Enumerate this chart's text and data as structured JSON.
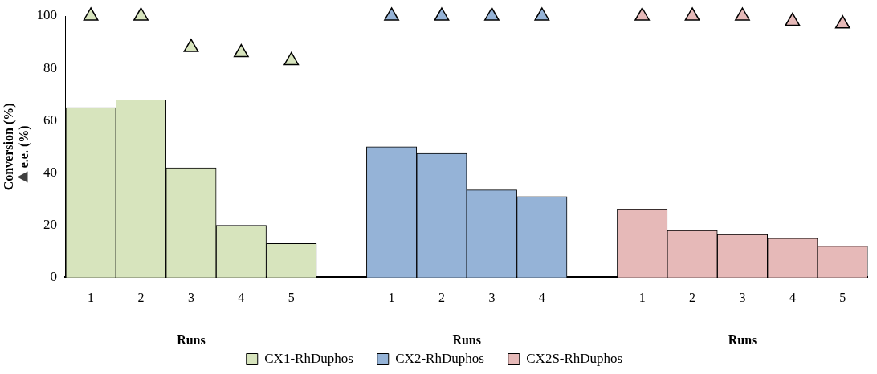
{
  "chart_data": {
    "type": "bar",
    "ylabel": "Conversion (%)\ne.e. (%)",
    "categories": [
      "1",
      "2",
      "3",
      "4",
      "5",
      null,
      "1",
      "2",
      "3",
      "4",
      null,
      "1",
      "2",
      "3",
      "4",
      "5"
    ],
    "series": [
      {
        "name": "CX1-RhDuphos",
        "color": "#d7e4bd",
        "values": [
          65,
          68,
          42,
          20,
          13,
          null,
          null,
          null,
          null,
          null,
          null,
          null,
          null,
          null,
          null,
          null
        ]
      },
      {
        "name": "CX2-RhDuphos",
        "color": "#95b3d7",
        "values": [
          null,
          null,
          null,
          null,
          null,
          null,
          50,
          47.5,
          33.5,
          31,
          null,
          null,
          null,
          null,
          null,
          null
        ]
      },
      {
        "name": "CX2S-RhDuphos",
        "color": "#e6b9b8",
        "values": [
          null,
          null,
          null,
          null,
          null,
          null,
          null,
          null,
          null,
          null,
          null,
          26,
          18,
          16.5,
          15,
          12
        ]
      },
      {
        "type": "scatter",
        "color": "#d7e4bd",
        "values": [
          100,
          100,
          88,
          86,
          83,
          null,
          null,
          null,
          null,
          null,
          null,
          null,
          null,
          null,
          null,
          null
        ]
      },
      {
        "type": "scatter",
        "color": "#95b3d7",
        "values": [
          null,
          null,
          null,
          null,
          null,
          null,
          100,
          100,
          100,
          100,
          null,
          null,
          null,
          null,
          null,
          null
        ]
      },
      {
        "type": "scatter",
        "color": "#e6b9b8",
        "values": [
          null,
          null,
          null,
          null,
          null,
          null,
          null,
          null,
          null,
          null,
          null,
          100,
          100,
          100,
          98,
          97
        ]
      }
    ],
    "marker": "triangle",
    "ylim": [
      0,
      100
    ],
    "yticks": [
      0,
      20,
      40,
      60,
      80,
      100
    ],
    "grid": false,
    "legend": "bottom",
    "annotations": [
      "Runs",
      "Runs",
      "Runs"
    ]
  }
}
